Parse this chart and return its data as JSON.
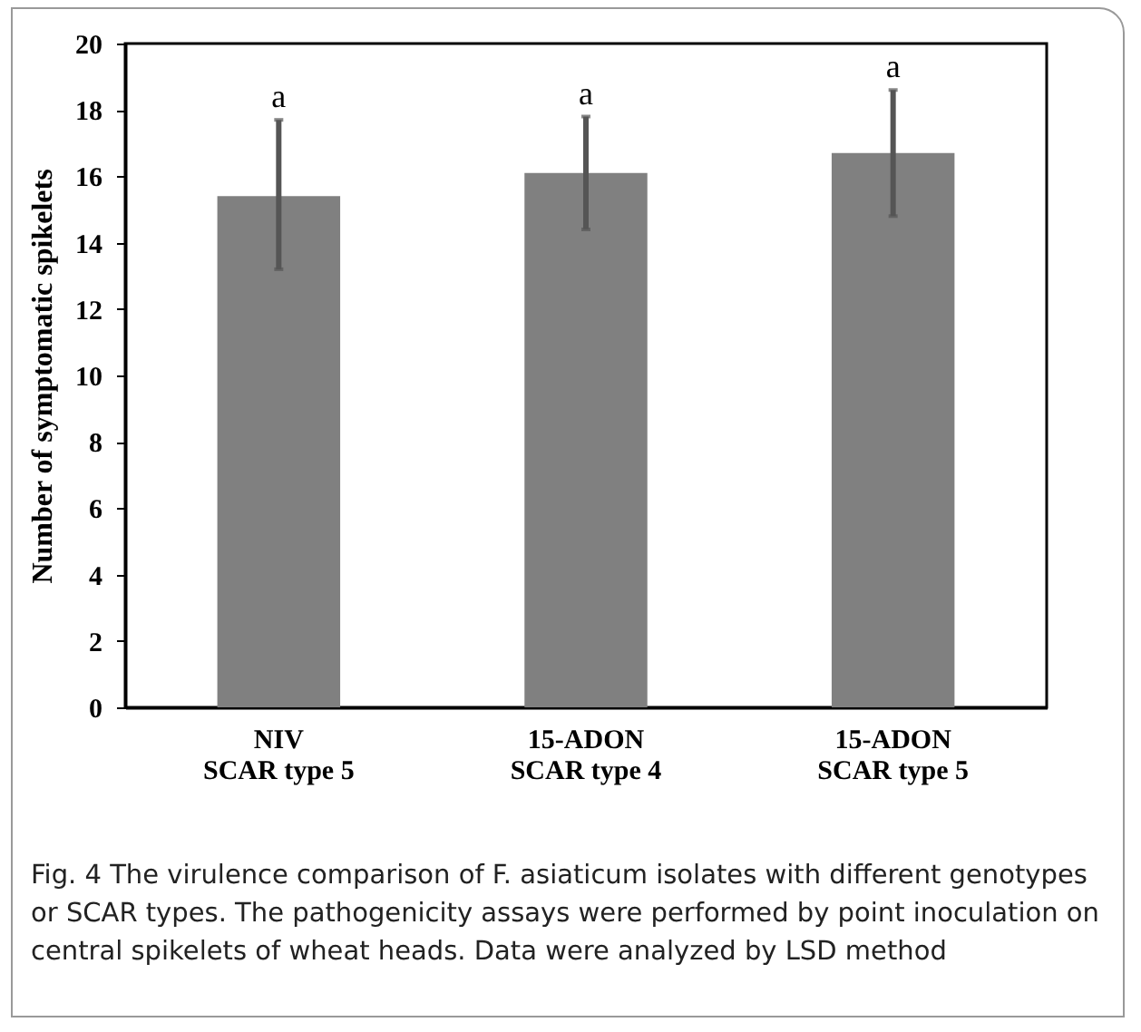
{
  "chart_data": {
    "type": "bar",
    "ylabel": "Number of symptomatic spikelets",
    "categories": [
      "NIV\nSCAR type 5",
      "15-ADON\nSCAR type 4",
      "15-ADON\nSCAR type 5"
    ],
    "values": [
      15.4,
      16.1,
      16.7
    ],
    "color": "#808080",
    "errors": [
      [
        13.2,
        17.7
      ],
      [
        14.4,
        17.8
      ],
      [
        14.8,
        18.6
      ]
    ],
    "ylim": [
      0,
      20
    ],
    "yticks": [
      0,
      2,
      4,
      6,
      8,
      10,
      12,
      14,
      16,
      18,
      20
    ],
    "grid": false,
    "annotations": [
      {
        "text": "a",
        "x": "NIV\nSCAR type 5",
        "y": 17.7
      },
      {
        "text": "a",
        "x": "15-ADON\nSCAR type 4",
        "y": 17.8
      },
      {
        "text": "a",
        "x": "15-ADON\nSCAR type 5",
        "y": 18.6
      },
      "Fig. 4 The virulence comparison of F. asiaticum isolates with different genotypes or SCAR types. The pathogenicity assays were performed by point inoculation on central spikelets of wheat heads. Data were analyzed by LSD method"
    ]
  }
}
